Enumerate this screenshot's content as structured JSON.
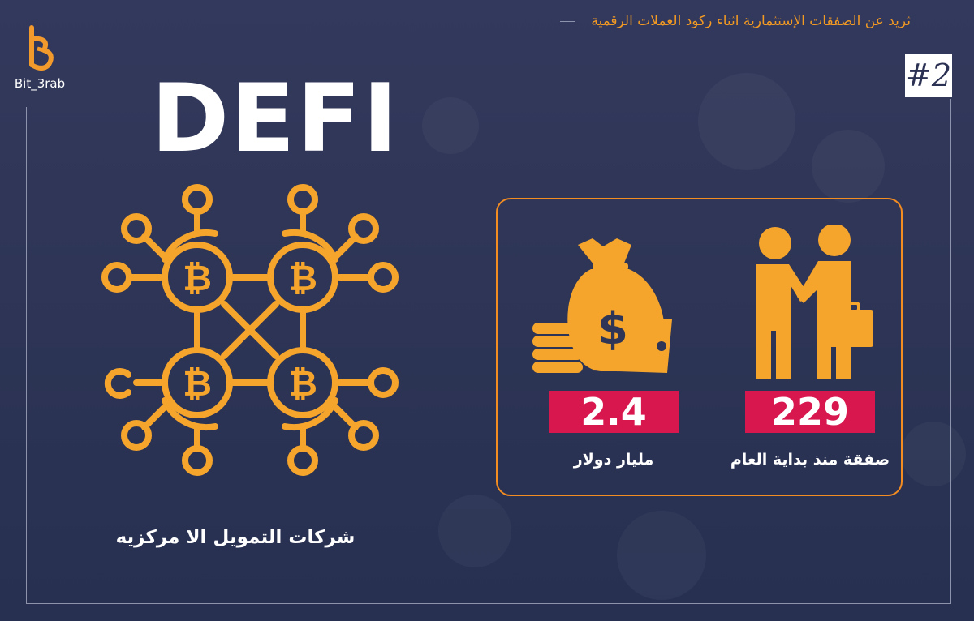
{
  "brand": {
    "name": "Bit_3rab",
    "logo_icon": "b3-logo-icon"
  },
  "header": {
    "title": "ثريد عن الصفقات الإستثمارية اثناء ركود العملات الرقمية",
    "badge": "#2"
  },
  "main": {
    "heading": "DEFI",
    "network_icon": "bitcoin-network-icon",
    "network_caption": "شركات التمويل الا مركزيه"
  },
  "stats": [
    {
      "icon": "handshake-icon",
      "value": "229",
      "label": "صفقة منذ بداية العام"
    },
    {
      "icon": "money-bag-icon",
      "value": "2.4",
      "label": "مليار دولار"
    }
  ],
  "colors": {
    "background": "#2e3556",
    "accent": "#f5a52c",
    "box_border": "#f38c21",
    "value_bar": "#d8174e",
    "title": "#f39a23"
  }
}
